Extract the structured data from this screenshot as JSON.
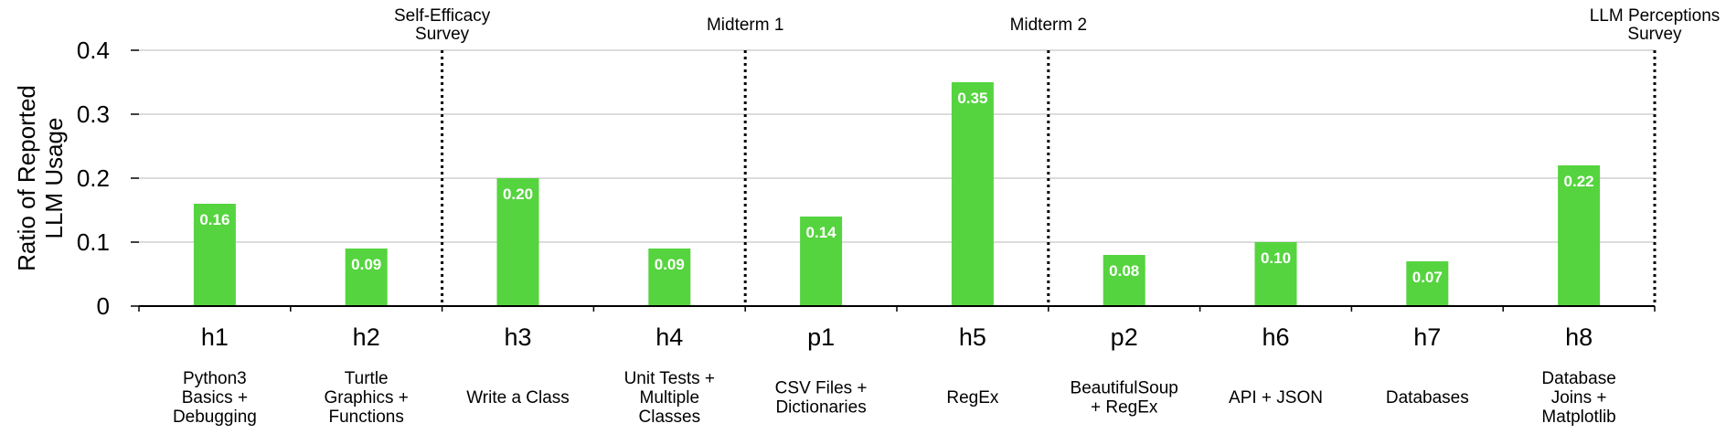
{
  "chart_data": {
    "type": "bar",
    "ylabel": [
      "Ratio of Reported",
      "LLM Usage"
    ],
    "ylim": [
      0,
      0.4
    ],
    "yticks": [
      "0",
      "0.1",
      "0.2",
      "0.3",
      "0.4"
    ],
    "ytick_values": [
      0,
      0.1,
      0.2,
      0.3,
      0.4
    ],
    "grid": true,
    "bar_color": "#55d43f",
    "categories": [
      "h1",
      "h2",
      "h3",
      "h4",
      "p1",
      "h5",
      "p2",
      "h6",
      "h7",
      "h8"
    ],
    "descriptions": [
      [
        "Python3",
        "Basics +",
        "Debugging"
      ],
      [
        "Turtle",
        "Graphics +",
        "Functions"
      ],
      [
        "Write a Class"
      ],
      [
        "Unit Tests +",
        "Multiple",
        "Classes"
      ],
      [
        "CSV Files +",
        "Dictionaries"
      ],
      [
        "RegEx"
      ],
      [
        "BeautifulSoup",
        "+ RegEx"
      ],
      [
        "API + JSON"
      ],
      [
        "Databases"
      ],
      [
        "Database",
        "Joins +",
        "Matplotlib"
      ]
    ],
    "values": [
      0.16,
      0.09,
      0.2,
      0.09,
      0.14,
      0.35,
      0.08,
      0.1,
      0.07,
      0.22
    ],
    "value_labels": [
      "0.16",
      "0.09",
      "0.20",
      "0.09",
      "0.14",
      "0.35",
      "0.08",
      "0.10",
      "0.07",
      "0.22"
    ],
    "markers": [
      {
        "after_index": 1,
        "label": [
          "Self-Efficacy",
          "Survey"
        ]
      },
      {
        "after_index": 3,
        "label": [
          "Midterm 1"
        ]
      },
      {
        "after_index": 5,
        "label": [
          "Midterm 2"
        ]
      },
      {
        "after_index": 9,
        "label": [
          "LLM Perceptions",
          "Survey"
        ]
      }
    ]
  }
}
